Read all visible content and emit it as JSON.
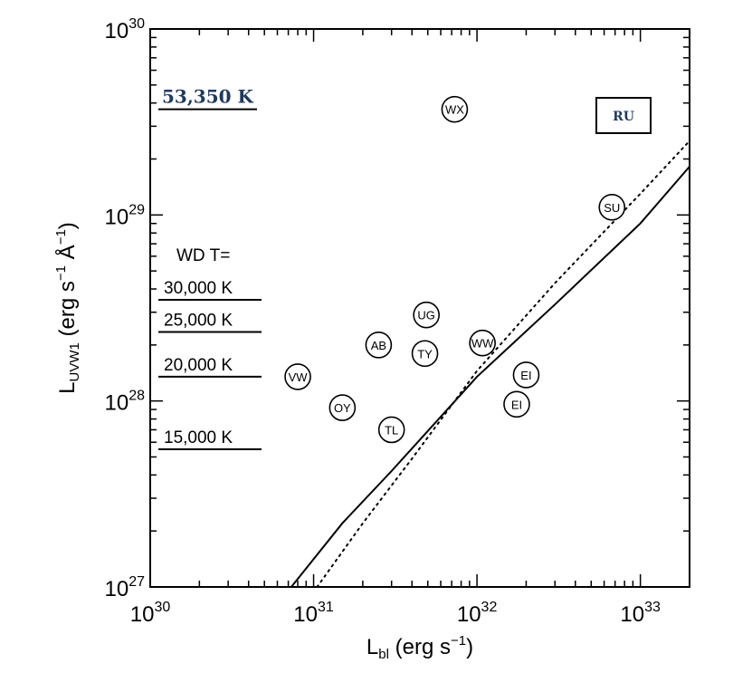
{
  "chart_data": {
    "type": "scatter",
    "xscale": "log",
    "yscale": "log",
    "xlim": [
      1e+30,
      2e+33
    ],
    "ylim": [
      1e+27,
      1e+30
    ],
    "xlabel": {
      "main": "L",
      "sub": "bl",
      "rest": " (erg s",
      "sup": "−1",
      "close": ")"
    },
    "ylabel": {
      "main": "L",
      "sub": "UVW1",
      "rest": " (erg s",
      "sup1": "−1",
      "mid": " Å",
      "sup2": "−1",
      "close": ")"
    },
    "xticks": [
      {
        "base": "10",
        "exp": "30",
        "value": 1e+30
      },
      {
        "base": "10",
        "exp": "31",
        "value": 1e+31
      },
      {
        "base": "10",
        "exp": "32",
        "value": 1e+32
      },
      {
        "base": "10",
        "exp": "33",
        "value": 1e+33
      }
    ],
    "yticks": [
      {
        "base": "10",
        "exp": "27",
        "value": 1e+27
      },
      {
        "base": "10",
        "exp": "28",
        "value": 1e+28
      },
      {
        "base": "10",
        "exp": "29",
        "value": 1e+29
      },
      {
        "base": "10",
        "exp": "30",
        "value": 1e+30
      }
    ],
    "points": [
      {
        "label": "WX",
        "x": 7.3e+31,
        "y": 3.7e+29
      },
      {
        "label": "SU",
        "x": 6.7e+32,
        "y": 1.1e+29
      },
      {
        "label": "UG",
        "x": 4.9e+31,
        "y": 2.9e+28
      },
      {
        "label": "AB",
        "x": 2.5e+31,
        "y": 2e+28
      },
      {
        "label": "TY",
        "x": 4.8e+31,
        "y": 1.8e+28
      },
      {
        "label": "WW",
        "x": 1.08e+32,
        "y": 2.05e+28
      },
      {
        "label": "VW",
        "x": 8e+30,
        "y": 1.35e+28
      },
      {
        "label": "EI",
        "x": 2e+32,
        "y": 1.38e+28
      },
      {
        "label": "EI",
        "x": 1.75e+32,
        "y": 9.6e+27
      },
      {
        "label": "OY",
        "x": 1.5e+31,
        "y": 9.2e+27
      },
      {
        "label": "TL",
        "x": 3e+31,
        "y": 7e+27
      }
    ],
    "curves": [
      {
        "style": "solid",
        "x": [
          7.3e+30,
          1.5e+31,
          3e+31,
          1e+32,
          3e+32,
          1e+33,
          2e+33
        ],
        "y": [
          1e+27,
          2.2e+27,
          4.2e+27,
          1.35e+28,
          3.3e+28,
          9e+28,
          1.82e+29
        ]
      },
      {
        "style": "dotted",
        "x": [
          1.05e+31,
          2e+31,
          4e+31,
          1e+32,
          3e+32,
          1e+33,
          2e+33
        ],
        "y": [
          1e+27,
          2.2e+27,
          4.9e+27,
          1.45e+28,
          4.3e+28,
          1.3e+29,
          2.5e+29
        ]
      }
    ],
    "reference_levels": [
      {
        "label": "53,350 K",
        "y": 3.7e+29,
        "style": "bold-blue"
      },
      {
        "label": "30,000 K",
        "y": 3.5e+28
      },
      {
        "label": "25,000 K",
        "y": 2.35e+28
      },
      {
        "label": "20,000 K",
        "y": 1.35e+28
      },
      {
        "label": "15,000 K",
        "y": 5.5e+27
      }
    ],
    "wd_label": "WD T=",
    "box_label": "RU",
    "colors": {
      "axis": "#000000",
      "annotation_blue": "#1f3a5f"
    }
  }
}
